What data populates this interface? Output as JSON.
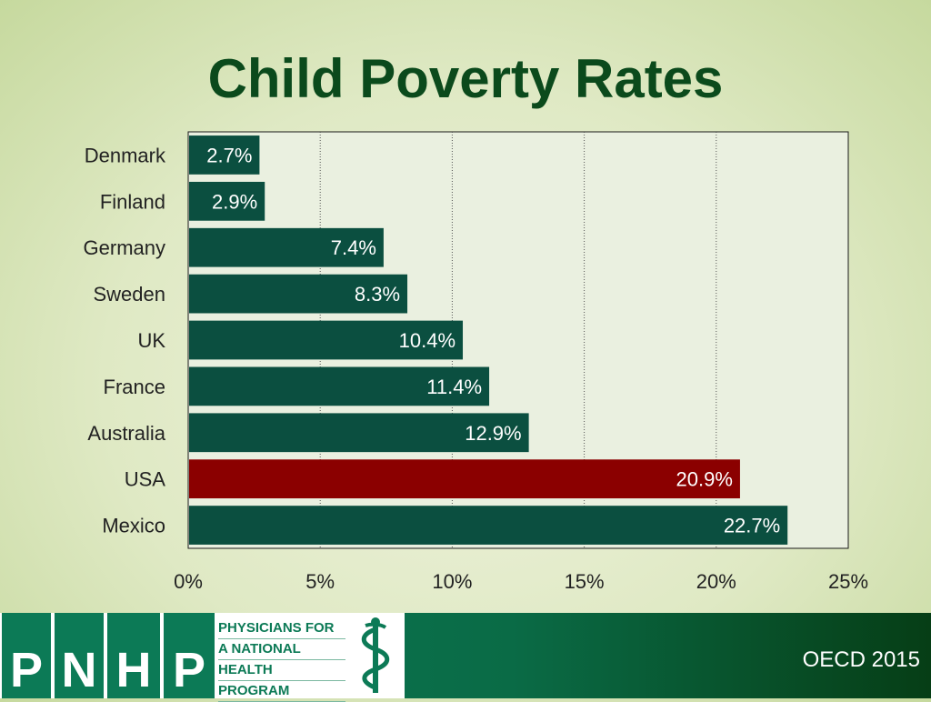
{
  "title": "Child Poverty Rates",
  "chart_data": {
    "type": "bar",
    "orientation": "horizontal",
    "categories": [
      "Denmark",
      "Finland",
      "Germany",
      "Sweden",
      "UK",
      "France",
      "Australia",
      "USA",
      "Mexico"
    ],
    "values": [
      2.7,
      2.9,
      7.4,
      8.3,
      10.4,
      11.4,
      12.9,
      20.9,
      22.7
    ],
    "value_labels": [
      "2.7%",
      "2.9%",
      "7.4%",
      "8.3%",
      "10.4%",
      "11.4%",
      "12.9%",
      "20.9%",
      "22.7%"
    ],
    "highlight": "USA",
    "xlim": [
      0,
      25
    ],
    "xticks": [
      0,
      5,
      10,
      15,
      20,
      25
    ],
    "xtick_labels": [
      "0%",
      "5%",
      "10%",
      "15%",
      "20%",
      "25%"
    ],
    "grid": "vertical dotted",
    "xlabel": "",
    "ylabel": ""
  },
  "colors": {
    "bar": "#0b4f40",
    "highlight_bar": "#8b0000",
    "plot_background": "#eaf0e0",
    "title": "#0b4a1c"
  },
  "logo": {
    "letters": [
      "P",
      "N",
      "H",
      "P"
    ],
    "words": [
      "PHYSICIANS FOR",
      "A NATIONAL",
      "HEALTH",
      "PROGRAM"
    ]
  },
  "source": "OECD 2015"
}
